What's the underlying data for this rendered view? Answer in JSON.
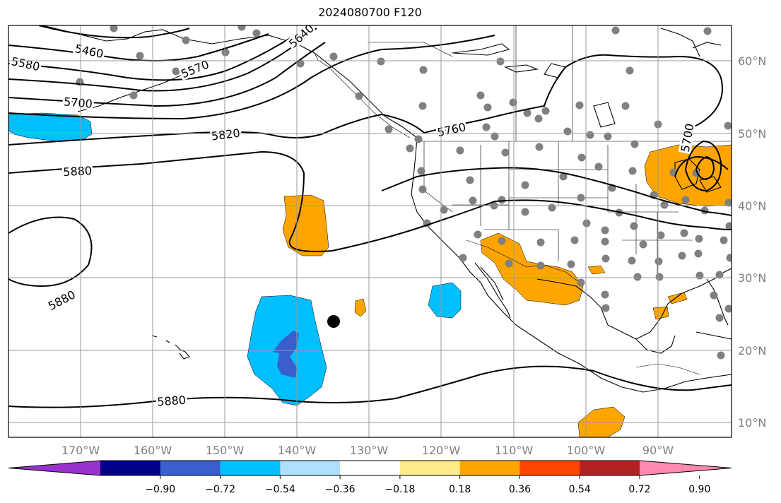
{
  "title": "2024080700 F120",
  "lon_labels": [
    "170°W",
    "160°W",
    "150°W",
    "140°W",
    "130°W",
    "120°W",
    "110°W",
    "100°W",
    "90°W"
  ],
  "lat_labels": [
    "60°N",
    "50°N",
    "40°N",
    "30°N",
    "20°N",
    "10°N"
  ],
  "contour_labels": [
    "5460",
    "5580",
    "5570",
    "5640",
    "5700",
    "5760",
    "5820",
    "5880",
    "5880",
    "5880",
    "5700"
  ],
  "colorbar": {
    "ticks": [
      "−0.90",
      "−0.72",
      "−0.54",
      "−0.36",
      "−0.18",
      "0.18",
      "0.36",
      "0.54",
      "0.72",
      "0.90"
    ],
    "colors": [
      "#9932cc",
      "#00008b",
      "#3a5fcd",
      "#00bfff",
      "#afdfff",
      "#ffffff",
      "#ffeb8a",
      "#ffa500",
      "#ff4500",
      "#b22222",
      "#ff88b0"
    ]
  },
  "colors": {
    "positive_anomaly": "#ffa500",
    "negative_anomaly": "#00bfff",
    "strong_negative": "#3a5fcd",
    "station": "#808080"
  }
}
